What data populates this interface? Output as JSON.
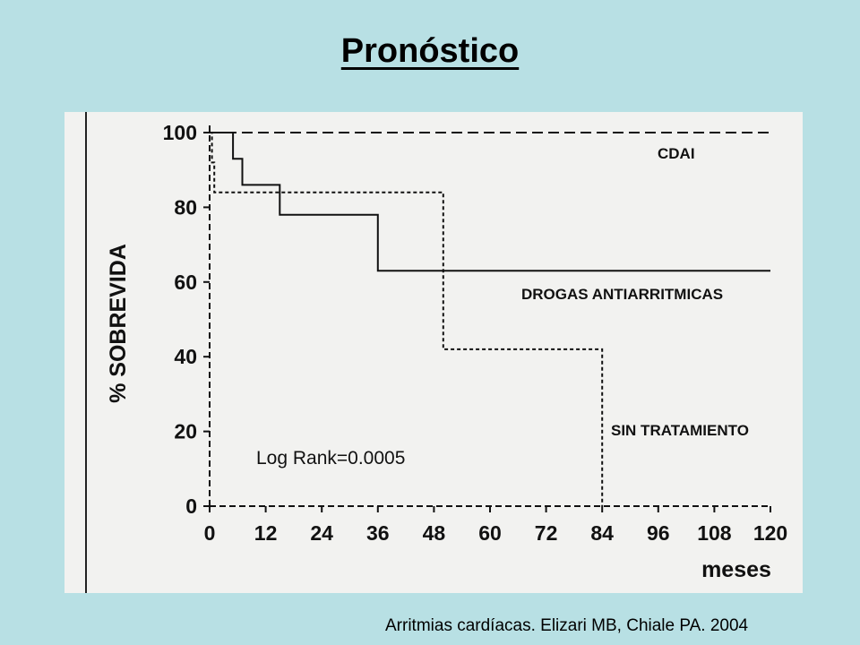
{
  "slide": {
    "title": "Pronóstico",
    "citation": "Arritmias cardíacas. Elizari MB, Chiale PA.  2004",
    "background": "#b8e0e4"
  },
  "chart_data": {
    "type": "line",
    "ylabel": "% SOBREVIDA",
    "xlabel": "meses",
    "xlim": [
      0,
      120
    ],
    "ylim": [
      0,
      100
    ],
    "x_ticks": [
      0,
      12,
      24,
      36,
      48,
      60,
      72,
      84,
      96,
      108,
      120
    ],
    "y_ticks": [
      0,
      20,
      40,
      60,
      80,
      100
    ],
    "annotation": "Log Rank=0.0005",
    "grid": false,
    "series": [
      {
        "name": "CDAI",
        "style": "dashed",
        "x": [
          0,
          120
        ],
        "y": [
          100,
          100
        ]
      },
      {
        "name": "DROGAS ANTIARRITMICAS",
        "style": "solid",
        "x": [
          0,
          5,
          5,
          7,
          7,
          15,
          15,
          36,
          36,
          120
        ],
        "y": [
          100,
          100,
          93,
          93,
          86,
          86,
          78,
          78,
          63,
          63
        ]
      },
      {
        "name": "SIN TRATAMIENTO",
        "style": "dotted",
        "x": [
          0,
          0.5,
          0.5,
          1,
          1,
          50,
          50,
          84,
          84
        ],
        "y": [
          100,
          100,
          92,
          92,
          84,
          84,
          42,
          42,
          0
        ]
      }
    ]
  }
}
